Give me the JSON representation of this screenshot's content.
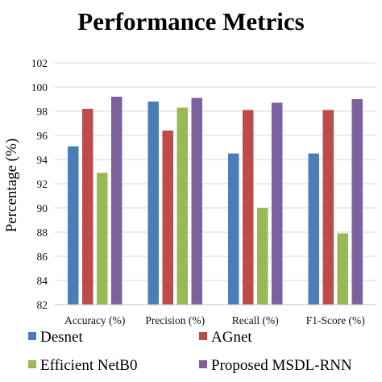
{
  "chart_data": {
    "type": "bar",
    "title": "Performance Metrics",
    "xlabel": "",
    "ylabel": "Percentage (%)",
    "ylim": [
      82,
      102
    ],
    "yticks": [
      82,
      84,
      86,
      88,
      90,
      92,
      94,
      96,
      98,
      100,
      102
    ],
    "grid": true,
    "legend_position": "bottom",
    "categories": [
      "Accuracy (%)",
      "Precision (%)",
      "Recall (%)",
      "F1-Score (%)"
    ],
    "series": [
      {
        "name": "Desnet",
        "color": "#4a7ebb",
        "values": [
          95.1,
          98.8,
          94.5,
          94.5
        ]
      },
      {
        "name": "AGnet",
        "color": "#be4b48",
        "values": [
          98.2,
          96.4,
          98.1,
          98.1
        ]
      },
      {
        "name": "Efficient NetB0",
        "color": "#98b954",
        "values": [
          92.9,
          98.3,
          90.0,
          87.9
        ]
      },
      {
        "name": "Proposed MSDL-RNN",
        "color": "#7d60a0",
        "values": [
          99.2,
          99.1,
          98.7,
          99.0
        ]
      }
    ]
  }
}
